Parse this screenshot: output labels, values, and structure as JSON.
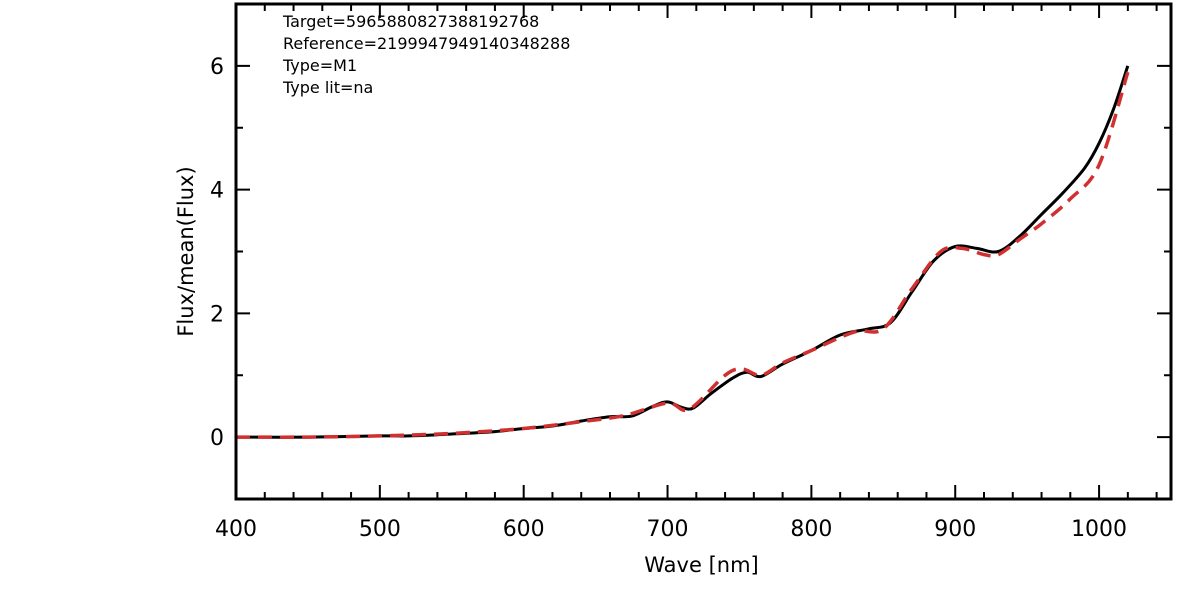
{
  "chart_data": {
    "type": "line",
    "xlabel": "Wave [nm]",
    "ylabel": "Flux/mean(Flux)",
    "xlim": [
      400,
      1050
    ],
    "ylim": [
      -1,
      7
    ],
    "x_ticks": [
      400,
      500,
      600,
      700,
      800,
      900,
      1000
    ],
    "y_ticks": [
      0,
      2,
      4,
      6
    ],
    "annotations": [
      "Target=5965880827388192768",
      "Reference=2199947949140348288",
      "Type=M1",
      "Type lit=na"
    ],
    "series": [
      {
        "color": "#000000",
        "style": "solid",
        "x": [
          400,
          450,
          500,
          520,
          550,
          580,
          600,
          620,
          640,
          660,
          675,
          690,
          700,
          710,
          718,
          730,
          745,
          755,
          765,
          780,
          800,
          820,
          840,
          855,
          870,
          885,
          900,
          915,
          930,
          945,
          960,
          975,
          990,
          1000,
          1010,
          1020
        ],
        "y": [
          0.0,
          0.0,
          0.02,
          0.02,
          0.05,
          0.09,
          0.14,
          0.18,
          0.26,
          0.33,
          0.34,
          0.5,
          0.57,
          0.48,
          0.47,
          0.7,
          0.95,
          1.05,
          0.98,
          1.18,
          1.4,
          1.65,
          1.75,
          1.85,
          2.35,
          2.85,
          3.08,
          3.05,
          3.0,
          3.25,
          3.6,
          3.95,
          4.35,
          4.75,
          5.3,
          6.0
        ]
      },
      {
        "color": "#d03030",
        "style": "dashed",
        "x": [
          400,
          450,
          500,
          550,
          600,
          640,
          670,
          700,
          715,
          740,
          752,
          765,
          780,
          800,
          830,
          850,
          870,
          890,
          905,
          920,
          930,
          945,
          960,
          980,
          1000,
          1020
        ],
        "y": [
          0.0,
          0.0,
          0.02,
          0.06,
          0.14,
          0.25,
          0.35,
          0.55,
          0.45,
          1.0,
          1.1,
          1.0,
          1.2,
          1.4,
          1.7,
          1.75,
          2.4,
          3.0,
          3.05,
          2.95,
          2.95,
          3.2,
          3.45,
          3.85,
          4.4,
          5.9
        ]
      }
    ]
  }
}
